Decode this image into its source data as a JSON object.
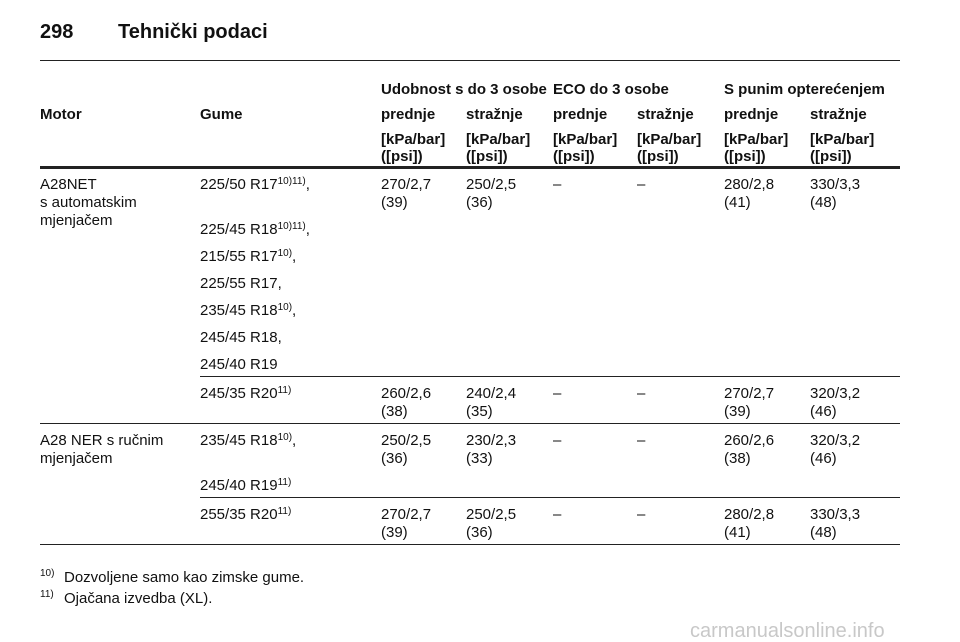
{
  "header": {
    "page_number": "298",
    "title": "Tehnički podaci"
  },
  "table": {
    "groups": [
      "Udobnost s do 3 osobe",
      "ECO do 3 osobe",
      "S punim opterećenjem"
    ],
    "columns": [
      "Motor",
      "Gume",
      "prednje",
      "stražnje",
      "prednje",
      "stražnje",
      "prednje",
      "stražnje"
    ],
    "units": [
      [
        "[kPa/bar]",
        "([psi])"
      ],
      [
        "[kPa/bar]",
        "([psi])"
      ],
      [
        "[kPa/bar]",
        "([psi])"
      ],
      [
        "[kPa/bar]",
        "([psi])"
      ],
      [
        "[kPa/bar]",
        "([psi])"
      ],
      [
        "[kPa/bar]",
        "([psi])"
      ]
    ],
    "sections": [
      {
        "motor": [
          "A28NET",
          "s automatskim",
          "mjenjačem"
        ],
        "rows": [
          {
            "tires": [
              {
                "text": "225/50 R17",
                "sup": "10)11)",
                "suffix": ","
              },
              {
                "text": "225/45 R18",
                "sup": "10)11)",
                "suffix": ","
              },
              {
                "text": "215/55 R17",
                "sup": "10)",
                "suffix": ","
              },
              {
                "text": "225/55 R17,"
              },
              {
                "text": "235/45 R18",
                "sup": "10)",
                "suffix": ","
              },
              {
                "text": "245/45 R18,"
              },
              {
                "text": "245/40 R19"
              }
            ],
            "values": [
              [
                "270/2,7",
                "(39)"
              ],
              [
                "250/2,5",
                "(36)"
              ],
              [
                "–"
              ],
              [
                "–"
              ],
              [
                "280/2,8",
                "(41)"
              ],
              [
                "330/3,3",
                "(48)"
              ]
            ]
          },
          {
            "tires": [
              {
                "text": "245/35 R20",
                "sup": "11)"
              }
            ],
            "values": [
              [
                "260/2,6",
                "(38)"
              ],
              [
                "240/2,4",
                "(35)"
              ],
              [
                "–"
              ],
              [
                "–"
              ],
              [
                "270/2,7",
                "(39)"
              ],
              [
                "320/3,2",
                "(46)"
              ]
            ]
          }
        ]
      },
      {
        "motor": [
          "A28 NER s ručnim",
          "mjenjačem"
        ],
        "rows": [
          {
            "tires": [
              {
                "text": "235/45 R18",
                "sup": "10)",
                "suffix": ","
              },
              {
                "text": "245/40 R19",
                "sup": "11)"
              }
            ],
            "values": [
              [
                "250/2,5",
                "(36)"
              ],
              [
                "230/2,3",
                "(33)"
              ],
              [
                "–"
              ],
              [
                "–"
              ],
              [
                "260/2,6",
                "(38)"
              ],
              [
                "320/3,2",
                "(46)"
              ]
            ]
          },
          {
            "tires": [
              {
                "text": "255/35 R20",
                "sup": "11)"
              }
            ],
            "values": [
              [
                "270/2,7",
                "(39)"
              ],
              [
                "250/2,5",
                "(36)"
              ],
              [
                "–"
              ],
              [
                "–"
              ],
              [
                "280/2,8",
                "(41)"
              ],
              [
                "330/3,3",
                "(48)"
              ]
            ]
          }
        ]
      }
    ]
  },
  "footnotes": [
    {
      "mark": "10)",
      "text": "Dozvoljene samo kao zimske gume."
    },
    {
      "mark": "11)",
      "text": "Ojačana izvedba (XL)."
    }
  ],
  "watermark": "carmanualsonline.info"
}
